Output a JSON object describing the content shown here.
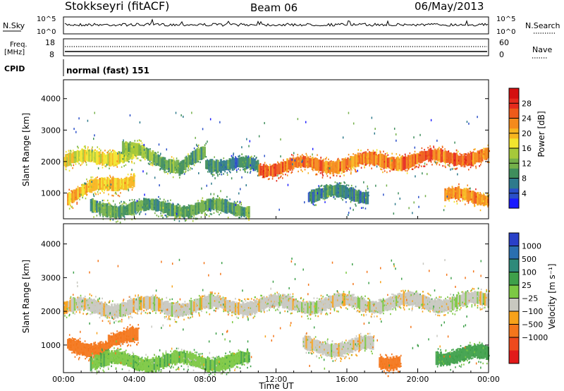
{
  "header": {
    "station": "Stokkseyri (fitACF)",
    "beam": "Beam 06",
    "date": "06/May/2013"
  },
  "top_panels": {
    "nsky_label": "N.Sky",
    "nsky_ticks": [
      "10^5",
      "10^0"
    ],
    "nsearch_label": "N.Search",
    "nsearch_ticks": [
      "10^5",
      "10^0"
    ],
    "freq_label_1": "Freq.",
    "freq_label_2": "[MHz]",
    "freq_ticks": [
      "18",
      "8"
    ],
    "nave_label": "Nave",
    "nave_ticks": [
      "60",
      "0"
    ],
    "cpid_label": "CPID",
    "cpid_value": "normal (fast) 151"
  },
  "chart_data": [
    {
      "type": "heatmap",
      "name": "power",
      "ylabel": "Slant Range [km]",
      "yticks": [
        1000,
        2000,
        3000,
        4000
      ],
      "ylim": [
        180,
        4600
      ],
      "colorbar_label": "Power [dB]",
      "colorbar_ticks": [
        "4",
        "8",
        "12",
        "16",
        "20",
        "24",
        "28"
      ],
      "colorbar_colors": [
        "#1a1aff",
        "#2a4fc8",
        "#2e7a8c",
        "#3f8e5c",
        "#74b04a",
        "#a6c93a",
        "#f2e52e",
        "#f7b51f",
        "#f58a1b",
        "#ee5a1a",
        "#e52a1d",
        "#d41010"
      ],
      "bands": [
        {
          "t0": 0.0,
          "t1": 4.3,
          "r0": 2000,
          "r1": 2300,
          "level": 16
        },
        {
          "t0": 3.3,
          "t1": 6.5,
          "r0": 2400,
          "r1": 1900,
          "level": 12
        },
        {
          "t0": 6.5,
          "t1": 8.0,
          "r0": 1700,
          "r1": 2300,
          "level": 10
        },
        {
          "t0": 8.0,
          "t1": 11.0,
          "r0": 2000,
          "r1": 1800,
          "level": 8
        },
        {
          "t0": 11.0,
          "t1": 24.0,
          "r0": 1800,
          "r1": 2200,
          "level": 22
        },
        {
          "t0": 0.2,
          "t1": 4.0,
          "r0": 900,
          "r1": 1500,
          "level": 18
        },
        {
          "t0": 1.5,
          "t1": 10.5,
          "r0": 520,
          "r1": 520,
          "level": 10
        },
        {
          "t0": 13.8,
          "t1": 17.2,
          "r0": 960,
          "r1": 960,
          "level": 8
        },
        {
          "t0": 21.5,
          "t1": 24.0,
          "r0": 880,
          "r1": 880,
          "level": 20
        }
      ]
    },
    {
      "type": "heatmap",
      "name": "velocity",
      "ylabel": "Slant Range [km]",
      "yticks": [
        1000,
        2000,
        3000,
        4000
      ],
      "ylim": [
        180,
        4600
      ],
      "xlabel": "Time UT",
      "xticks": [
        "00:00",
        "04:00",
        "08:00",
        "12:00",
        "16:00",
        "20:00",
        "00:00"
      ],
      "xlim": [
        0,
        24
      ],
      "colorbar_label": "Velocity [m s⁻¹]",
      "colorbar_ticks": [
        "1000",
        "500",
        "100",
        "25",
        "−25",
        "−100",
        "−500",
        "−1000"
      ],
      "colorbar_colors": [
        "#2940c8",
        "#2a6fb0",
        "#2e8a7a",
        "#3ea04a",
        "#7cc843",
        "#c8c8c0",
        "#f7a21a",
        "#f4761b",
        "#ed4a1c",
        "#e21a1a"
      ],
      "bands": [
        {
          "t0": 0.0,
          "t1": 24.0,
          "r0": 2100,
          "r1": 2300,
          "velocity": 0
        },
        {
          "t0": 2.5,
          "t1": 4.2,
          "r0": 1200,
          "r1": 1200,
          "velocity": -300
        },
        {
          "t0": 0.2,
          "t1": 2.5,
          "r0": 950,
          "r1": 950,
          "velocity": -200
        },
        {
          "t0": 1.5,
          "t1": 10.5,
          "r0": 520,
          "r1": 520,
          "velocity": 80
        },
        {
          "t0": 13.5,
          "t1": 17.5,
          "r0": 960,
          "r1": 960,
          "velocity": 0
        },
        {
          "t0": 17.8,
          "t1": 19.0,
          "r0": 560,
          "r1": 560,
          "velocity": -300
        },
        {
          "t0": 21.0,
          "t1": 24.0,
          "r0": 700,
          "r1": 700,
          "velocity": 150
        }
      ]
    }
  ]
}
